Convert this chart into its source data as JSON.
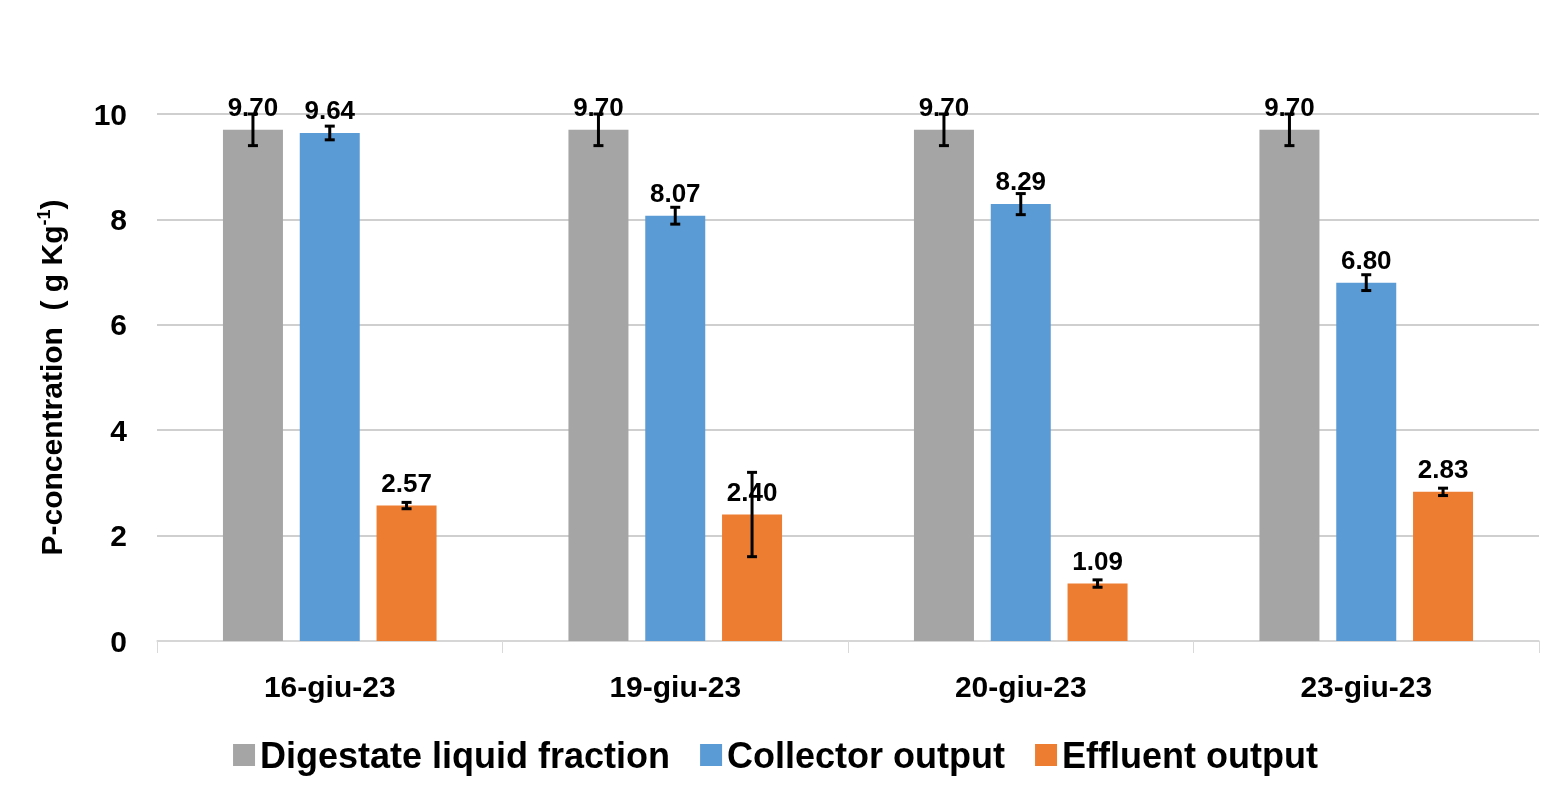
{
  "chart_data": {
    "type": "bar",
    "ylabel": "P-concentration  ( g Kg$^{-1}$)",
    "categories": [
      "16-giu-23",
      "19-giu-23",
      "20-giu-23",
      "23-giu-23"
    ],
    "series": [
      {
        "name": "Digestate liquid fraction",
        "color": "#a5a5a5",
        "values": [
          9.7,
          9.7,
          9.7,
          9.7
        ],
        "value_labels": [
          "9.70",
          "9.70",
          "9.70",
          "9.70"
        ],
        "errors": [
          0.3,
          0.3,
          0.3,
          0.3
        ]
      },
      {
        "name": "Collector output",
        "color": "#5b9bd5",
        "values": [
          9.64,
          8.07,
          8.29,
          6.8
        ],
        "value_labels": [
          "9.64",
          "8.07",
          "8.29",
          "6.80"
        ],
        "errors": [
          0.13,
          0.16,
          0.2,
          0.15
        ]
      },
      {
        "name": "Effluent output",
        "color": "#ed7d31",
        "values": [
          2.57,
          2.4,
          1.09,
          2.83
        ],
        "value_labels": [
          "2.57",
          "2.40",
          "1.09",
          "2.83"
        ],
        "errors": [
          0.06,
          0.8,
          0.07,
          0.07
        ]
      }
    ],
    "ylim": [
      0,
      10
    ],
    "yticks": [
      0,
      2,
      4,
      6,
      8,
      10
    ],
    "grid": "y",
    "legend": "bottom"
  }
}
